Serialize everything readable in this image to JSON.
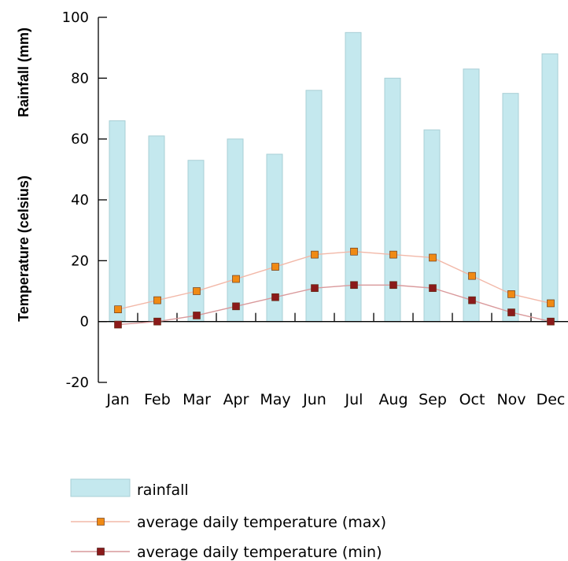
{
  "chart_data": {
    "type": "bar",
    "categories": [
      "Jan",
      "Feb",
      "Mar",
      "Apr",
      "May",
      "Jun",
      "Jul",
      "Aug",
      "Sep",
      "Oct",
      "Nov",
      "Dec"
    ],
    "series": [
      {
        "name": "rainfall",
        "type": "bar",
        "values": [
          66,
          61,
          53,
          60,
          55,
          76,
          95,
          80,
          63,
          83,
          75,
          88
        ]
      },
      {
        "name": "average daily temperature (max)",
        "type": "line",
        "values": [
          4,
          7,
          10,
          14,
          18,
          22,
          23,
          22,
          21,
          15,
          9,
          6
        ]
      },
      {
        "name": "average daily temperature (min)",
        "type": "line",
        "values": [
          -1,
          0,
          2,
          5,
          8,
          11,
          12,
          12,
          11,
          7,
          3,
          0
        ]
      }
    ],
    "ylabels": [
      "Rainfall (mm)",
      "Temperature (celsius)"
    ],
    "ylim": [
      -20,
      100
    ],
    "yticks": [
      100,
      80,
      60,
      40,
      20,
      0,
      -20
    ],
    "legend_position": "bottom-left",
    "colors": {
      "bar_fill": "#c4e8ee",
      "bar_stroke": "#a9cfd6",
      "max_line": "#f2b8a8",
      "max_marker": "#f08a14",
      "min_line": "#d9999b",
      "min_marker": "#8b1a1a"
    }
  }
}
